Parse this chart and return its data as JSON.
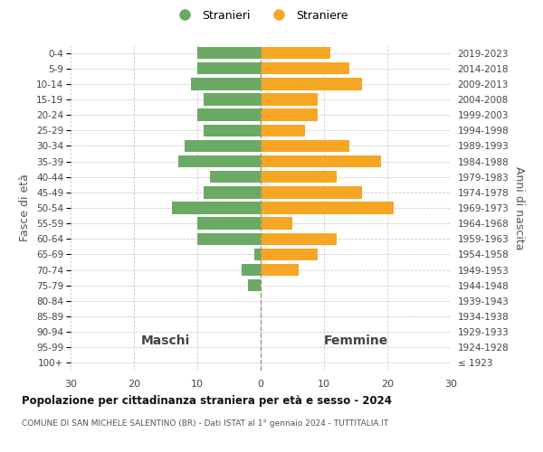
{
  "age_groups": [
    "100+",
    "95-99",
    "90-94",
    "85-89",
    "80-84",
    "75-79",
    "70-74",
    "65-69",
    "60-64",
    "55-59",
    "50-54",
    "45-49",
    "40-44",
    "35-39",
    "30-34",
    "25-29",
    "20-24",
    "15-19",
    "10-14",
    "5-9",
    "0-4"
  ],
  "birth_years": [
    "≤ 1923",
    "1924-1928",
    "1929-1933",
    "1934-1938",
    "1939-1943",
    "1944-1948",
    "1949-1953",
    "1954-1958",
    "1959-1963",
    "1964-1968",
    "1969-1973",
    "1974-1978",
    "1979-1983",
    "1984-1988",
    "1989-1993",
    "1994-1998",
    "1999-2003",
    "2004-2008",
    "2009-2013",
    "2014-2018",
    "2019-2023"
  ],
  "males": [
    0,
    0,
    0,
    0,
    0,
    2,
    3,
    1,
    10,
    10,
    14,
    9,
    8,
    13,
    12,
    9,
    10,
    9,
    11,
    10,
    10
  ],
  "females": [
    0,
    0,
    0,
    0,
    0,
    0,
    6,
    9,
    12,
    5,
    21,
    16,
    12,
    19,
    14,
    7,
    9,
    9,
    16,
    14,
    11
  ],
  "male_color": "#6aaa64",
  "female_color": "#f5a623",
  "male_label": "Stranieri",
  "female_label": "Straniere",
  "title": "Popolazione per cittadinanza straniera per età e sesso - 2024",
  "subtitle": "COMUNE DI SAN MICHELE SALENTINO (BR) - Dati ISTAT al 1° gennaio 2024 - TUTTITALIA.IT",
  "xlabel_left": "Maschi",
  "xlabel_right": "Femmine",
  "ylabel_left": "Fasce di età",
  "ylabel_right": "Anni di nascita",
  "xlim": 30,
  "background_color": "#ffffff",
  "grid_color": "#cccccc"
}
